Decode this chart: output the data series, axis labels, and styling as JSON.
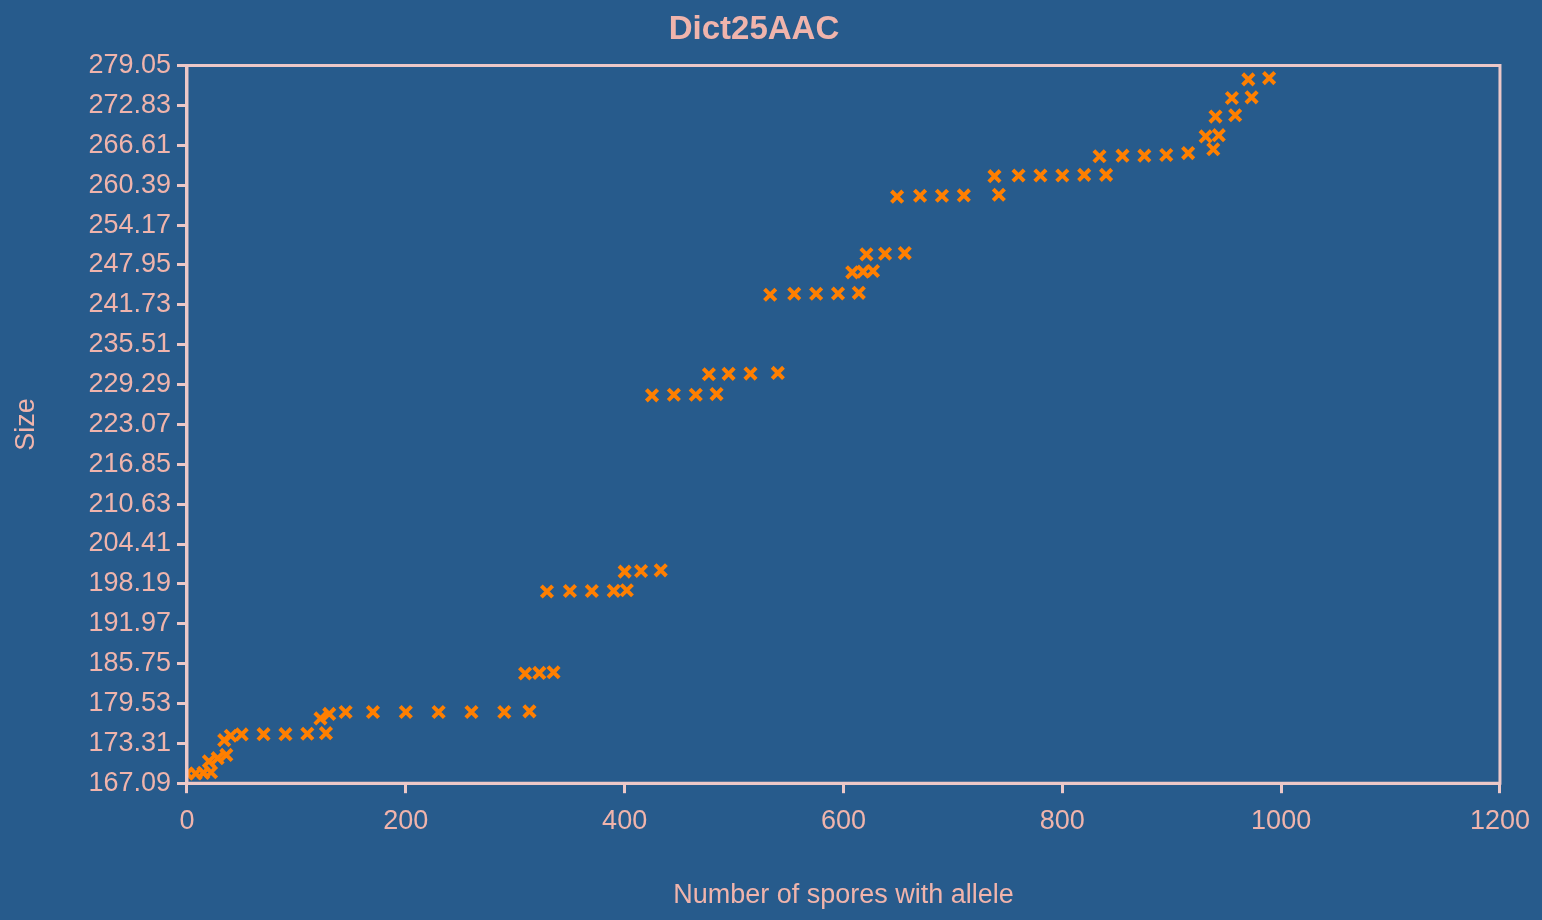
{
  "chart_data": {
    "type": "scatter",
    "title": "Dict25AAC",
    "xlabel": "Number of spores with allele",
    "ylabel": "Size",
    "marker": "cross",
    "grid": false,
    "legend": false,
    "xlim": [
      0,
      1200
    ],
    "xticks": [
      0,
      200,
      400,
      600,
      800,
      1000,
      1200
    ],
    "ylim": [
      167.09,
      279.05
    ],
    "yticks": [
      167.09,
      173.31,
      179.53,
      185.75,
      191.97,
      198.19,
      204.41,
      210.63,
      216.85,
      223.07,
      229.29,
      235.51,
      241.73,
      247.95,
      254.17,
      260.39,
      266.61,
      272.83,
      279.05
    ],
    "series": [
      {
        "color": "#ff7f00",
        "x": [
          0,
          8,
          15,
          22,
          20,
          28,
          36,
          34,
          40,
          50,
          70,
          90,
          110,
          127,
          122,
          130,
          145,
          170,
          200,
          230,
          260,
          290,
          313,
          309,
          322,
          335,
          329,
          350,
          370,
          390,
          402,
          400,
          415,
          433,
          425,
          445,
          465,
          484,
          477,
          495,
          515,
          540,
          533,
          555,
          575,
          595,
          614,
          608,
          618,
          627,
          621,
          638,
          656,
          649,
          670,
          690,
          710,
          742,
          738,
          760,
          780,
          800,
          820,
          840,
          834,
          855,
          875,
          895,
          915,
          938,
          931,
          943,
          940,
          958,
          955,
          973,
          970,
          989
        ],
        "values": [
          168.6,
          168.6,
          168.7,
          168.8,
          170.5,
          171,
          171.5,
          173.8,
          174.5,
          174.7,
          174.74,
          174.74,
          174.8,
          174.9,
          177.2,
          177.9,
          178.2,
          178.2,
          178.2,
          178.2,
          178.2,
          178.2,
          178.3,
          184.2,
          184.3,
          184.4,
          197,
          197.07,
          197.07,
          197.1,
          197.2,
          200.1,
          200.2,
          200.3,
          227.6,
          227.7,
          227.7,
          227.8,
          230.9,
          230.96,
          231,
          231.1,
          243.3,
          243.45,
          243.45,
          243.5,
          243.6,
          246.8,
          246.9,
          247,
          249.6,
          249.7,
          249.8,
          258.6,
          258.75,
          258.75,
          258.8,
          258.9,
          261.8,
          261.9,
          261.9,
          261.9,
          262,
          262,
          264.9,
          265,
          265,
          265.1,
          265.4,
          266,
          268,
          268.2,
          271.1,
          271.3,
          274,
          274.1,
          276.9,
          277.1
        ]
      }
    ]
  }
}
